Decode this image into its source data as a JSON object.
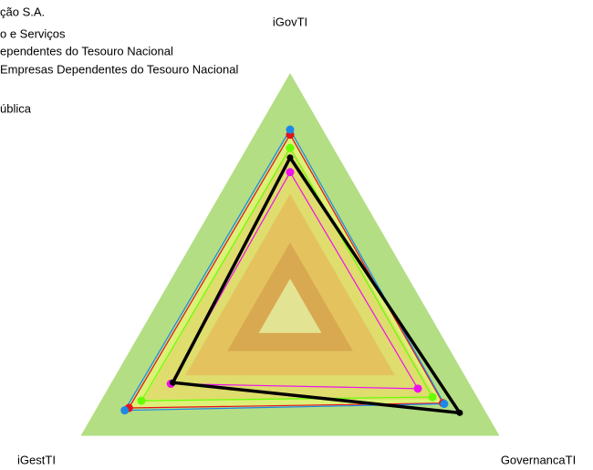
{
  "chart_data": {
    "type": "radar",
    "categories": [
      "iGovTI",
      "GovernancaTI",
      "iGestTI"
    ],
    "rlim": [
      0,
      1
    ],
    "levels": [
      {
        "value": 1.0,
        "color": "#b3de84"
      },
      {
        "value": 0.7,
        "color": "#b5b46a"
      },
      {
        "value": 0.5,
        "color": "#c47a4a"
      },
      {
        "value": 0.3,
        "color": "#a8412a"
      },
      {
        "value": 0.15,
        "color": "#c0c0c0"
      }
    ],
    "series": [
      {
        "name": "ção S.A.",
        "color": "#e8101a",
        "fill": "#ffff70",
        "values": [
          0.745,
          0.73,
          0.77
        ]
      },
      {
        "name": "o e Serviços",
        "color": "#1e88e5",
        "values": [
          0.766,
          0.736,
          0.79
        ]
      },
      {
        "name": "ependentes do Tesouro Nacional",
        "color": "#66ff00",
        "values": [
          0.69,
          0.68,
          0.71
        ]
      },
      {
        "name": "Empresas Dependentes do Tesouro Nacional",
        "color": "#ee10ee",
        "values": [
          0.59,
          0.61,
          0.57
        ]
      },
      {
        "name": "ública",
        "color": "#000000",
        "values": [
          0.65,
          0.81,
          0.56
        ]
      }
    ]
  }
}
